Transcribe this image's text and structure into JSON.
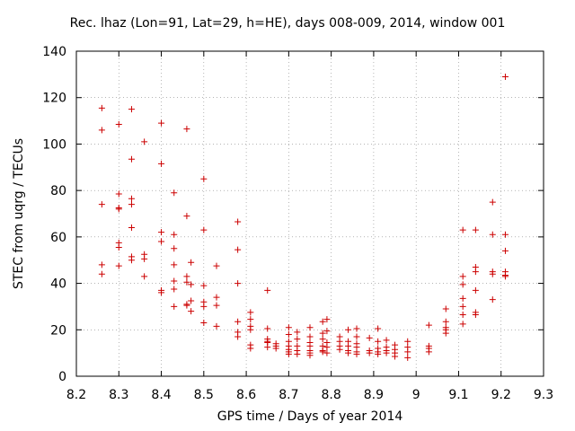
{
  "chart_data": {
    "type": "scatter",
    "title": "Rec. lhaz (Lon=91, Lat=29, h=HE), days 008-009, 2014, window 001",
    "xlabel": "GPS time / Days of year 2014",
    "ylabel": "STEC from uqrg / TECUs",
    "xlim": [
      8.2,
      9.3
    ],
    "ylim": [
      0,
      140
    ],
    "xticks": [
      8.2,
      8.3,
      8.4,
      8.5,
      8.6,
      8.7,
      8.8,
      8.9,
      9,
      9.1,
      9.2,
      9.3
    ],
    "xtick_labels": [
      "8.2",
      "8.3",
      "8.4",
      "8.5",
      "8.6",
      "8.7",
      "8.8",
      "8.9",
      "9",
      "9.1",
      "9.2",
      "9.3"
    ],
    "yticks": [
      0,
      20,
      40,
      60,
      80,
      100,
      120,
      140
    ],
    "ytick_labels": [
      "0",
      "20",
      "40",
      "60",
      "80",
      "100",
      "120",
      "140"
    ],
    "marker": "+",
    "color": "#cc0000",
    "points": [
      [
        8.26,
        115.5
      ],
      [
        8.26,
        106
      ],
      [
        8.26,
        74
      ],
      [
        8.26,
        48
      ],
      [
        8.26,
        44
      ],
      [
        8.3,
        108.5
      ],
      [
        8.3,
        78.5
      ],
      [
        8.3,
        72.5
      ],
      [
        8.3,
        72
      ],
      [
        8.3,
        57.5
      ],
      [
        8.3,
        55.5
      ],
      [
        8.3,
        47.5
      ],
      [
        8.33,
        115
      ],
      [
        8.33,
        93.5
      ],
      [
        8.33,
        76.5
      ],
      [
        8.33,
        74
      ],
      [
        8.33,
        64
      ],
      [
        8.33,
        51.5
      ],
      [
        8.33,
        50
      ],
      [
        8.36,
        101
      ],
      [
        8.36,
        52.5
      ],
      [
        8.36,
        50.5
      ],
      [
        8.36,
        43
      ],
      [
        8.4,
        109
      ],
      [
        8.4,
        91.5
      ],
      [
        8.4,
        62
      ],
      [
        8.4,
        58
      ],
      [
        8.4,
        37
      ],
      [
        8.4,
        36
      ],
      [
        8.43,
        79
      ],
      [
        8.43,
        61
      ],
      [
        8.43,
        55
      ],
      [
        8.43,
        48
      ],
      [
        8.43,
        41
      ],
      [
        8.43,
        37.5
      ],
      [
        8.43,
        30
      ],
      [
        8.46,
        106.5
      ],
      [
        8.46,
        69
      ],
      [
        8.46,
        43
      ],
      [
        8.46,
        40.5
      ],
      [
        8.46,
        31
      ],
      [
        8.46,
        30.5
      ],
      [
        8.47,
        49
      ],
      [
        8.47,
        39.5
      ],
      [
        8.47,
        32.5
      ],
      [
        8.47,
        28
      ],
      [
        8.5,
        85
      ],
      [
        8.5,
        63
      ],
      [
        8.5,
        39
      ],
      [
        8.5,
        32
      ],
      [
        8.5,
        30
      ],
      [
        8.5,
        23
      ],
      [
        8.53,
        47.5
      ],
      [
        8.53,
        34
      ],
      [
        8.53,
        30.5
      ],
      [
        8.53,
        21.5
      ],
      [
        8.58,
        66.5
      ],
      [
        8.58,
        54.5
      ],
      [
        8.58,
        40
      ],
      [
        8.58,
        23.5
      ],
      [
        8.58,
        19
      ],
      [
        8.58,
        17
      ],
      [
        8.61,
        27.5
      ],
      [
        8.61,
        24.5
      ],
      [
        8.61,
        21.5
      ],
      [
        8.61,
        20
      ],
      [
        8.61,
        13.5
      ],
      [
        8.61,
        12
      ],
      [
        8.65,
        37
      ],
      [
        8.65,
        20.5
      ],
      [
        8.65,
        16
      ],
      [
        8.65,
        15
      ],
      [
        8.65,
        14.5
      ],
      [
        8.65,
        12.5
      ],
      [
        8.67,
        14
      ],
      [
        8.67,
        13
      ],
      [
        8.67,
        12
      ],
      [
        8.7,
        21
      ],
      [
        8.7,
        18
      ],
      [
        8.7,
        15
      ],
      [
        8.7,
        13
      ],
      [
        8.7,
        11.5
      ],
      [
        8.7,
        10.5
      ],
      [
        8.7,
        9.5
      ],
      [
        8.72,
        19
      ],
      [
        8.72,
        16
      ],
      [
        8.72,
        13
      ],
      [
        8.72,
        11
      ],
      [
        8.72,
        9.5
      ],
      [
        8.75,
        21
      ],
      [
        8.75,
        17
      ],
      [
        8.75,
        14.5
      ],
      [
        8.75,
        13
      ],
      [
        8.75,
        11
      ],
      [
        8.75,
        10
      ],
      [
        8.75,
        9
      ],
      [
        8.78,
        23.5
      ],
      [
        8.78,
        18.5
      ],
      [
        8.78,
        16
      ],
      [
        8.78,
        13
      ],
      [
        8.78,
        11
      ],
      [
        8.78,
        10.5
      ],
      [
        8.79,
        24.5
      ],
      [
        8.79,
        19.5
      ],
      [
        8.79,
        14.5
      ],
      [
        8.79,
        12.5
      ],
      [
        8.79,
        10
      ],
      [
        8.82,
        17
      ],
      [
        8.82,
        15
      ],
      [
        8.82,
        13
      ],
      [
        8.82,
        11.5
      ],
      [
        8.84,
        20
      ],
      [
        8.84,
        15
      ],
      [
        8.84,
        13
      ],
      [
        8.84,
        11
      ],
      [
        8.84,
        10
      ],
      [
        8.86,
        20.5
      ],
      [
        8.86,
        17
      ],
      [
        8.86,
        14
      ],
      [
        8.86,
        12.5
      ],
      [
        8.86,
        10.5
      ],
      [
        8.86,
        9.5
      ],
      [
        8.89,
        16.5
      ],
      [
        8.89,
        11
      ],
      [
        8.89,
        10
      ],
      [
        8.91,
        20.5
      ],
      [
        8.91,
        15
      ],
      [
        8.91,
        12
      ],
      [
        8.91,
        10.5
      ],
      [
        8.91,
        9.5
      ],
      [
        8.93,
        15.5
      ],
      [
        8.93,
        12.5
      ],
      [
        8.93,
        11
      ],
      [
        8.93,
        10
      ],
      [
        8.95,
        13.5
      ],
      [
        8.95,
        11.5
      ],
      [
        8.95,
        10
      ],
      [
        8.95,
        8.5
      ],
      [
        8.98,
        15
      ],
      [
        8.98,
        12.5
      ],
      [
        8.98,
        10.5
      ],
      [
        8.98,
        8
      ],
      [
        9.03,
        22
      ],
      [
        9.03,
        13
      ],
      [
        9.03,
        12
      ],
      [
        9.03,
        10.5
      ],
      [
        9.07,
        29
      ],
      [
        9.07,
        23.5
      ],
      [
        9.07,
        21
      ],
      [
        9.07,
        20
      ],
      [
        9.07,
        18.5
      ],
      [
        9.11,
        63
      ],
      [
        9.11,
        43
      ],
      [
        9.11,
        39.5
      ],
      [
        9.11,
        33.5
      ],
      [
        9.11,
        30
      ],
      [
        9.11,
        26.5
      ],
      [
        9.11,
        22.5
      ],
      [
        9.14,
        63
      ],
      [
        9.14,
        47
      ],
      [
        9.14,
        45
      ],
      [
        9.14,
        37
      ],
      [
        9.14,
        27.5
      ],
      [
        9.14,
        26.5
      ],
      [
        9.18,
        75
      ],
      [
        9.18,
        61
      ],
      [
        9.18,
        45
      ],
      [
        9.18,
        44
      ],
      [
        9.18,
        33
      ],
      [
        9.21,
        129
      ],
      [
        9.21,
        61
      ],
      [
        9.21,
        54
      ],
      [
        9.21,
        45
      ],
      [
        9.21,
        43.5
      ],
      [
        9.21,
        43
      ]
    ]
  }
}
